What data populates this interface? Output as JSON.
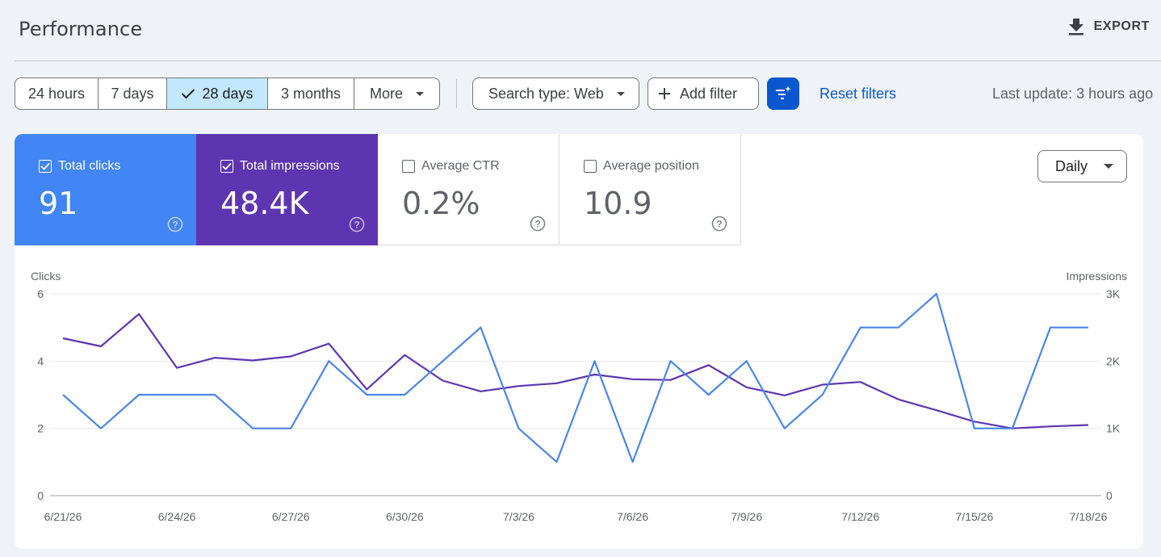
{
  "header": {
    "title": "Performance",
    "export_label": "EXPORT"
  },
  "date_range": {
    "options": [
      "24 hours",
      "7 days",
      "28 days",
      "3 months"
    ],
    "selected": "28 days",
    "more_label": "More"
  },
  "filters": {
    "search_type_label": "Search type: Web",
    "add_filter_label": "Add filter",
    "reset_label": "Reset filters",
    "last_update": "Last update: 3 hours ago"
  },
  "metrics": [
    {
      "key": "clicks",
      "label": "Total clicks",
      "value": "91",
      "checked": true,
      "color": "#4285f4"
    },
    {
      "key": "impr",
      "label": "Total impressions",
      "value": "48.4K",
      "checked": true,
      "color": "#5e35b1"
    },
    {
      "key": "ctr",
      "label": "Average CTR",
      "value": "0.2%",
      "checked": false
    },
    {
      "key": "pos",
      "label": "Average position",
      "value": "10.9",
      "checked": false
    }
  ],
  "granularity": {
    "selected": "Daily"
  },
  "chart_data": {
    "type": "line",
    "x": [
      "6/21/26",
      "6/22/26",
      "6/23/26",
      "6/24/26",
      "6/25/26",
      "6/26/26",
      "6/27/26",
      "6/28/26",
      "6/29/26",
      "6/30/26",
      "7/1/26",
      "7/2/26",
      "7/3/26",
      "7/4/26",
      "7/5/26",
      "7/6/26",
      "7/7/26",
      "7/8/26",
      "7/9/26",
      "7/10/26",
      "7/11/26",
      "7/12/26",
      "7/13/26",
      "7/14/26",
      "7/15/26",
      "7/16/26",
      "7/17/26",
      "7/18/26"
    ],
    "x_tick_labels": [
      "6/21/26",
      "6/24/26",
      "6/27/26",
      "6/30/26",
      "7/3/26",
      "7/6/26",
      "7/9/26",
      "7/12/26",
      "7/15/26",
      "7/18/26"
    ],
    "y_left": {
      "label": "Clicks",
      "ticks": [
        "0",
        "2",
        "4",
        "6"
      ],
      "lim": [
        0,
        6
      ]
    },
    "y_right": {
      "label": "Impressions",
      "ticks": [
        "0",
        "1K",
        "2K",
        "3K"
      ],
      "lim": [
        0,
        3000
      ]
    },
    "grid": true,
    "series": [
      {
        "name": "Clicks",
        "axis": "left",
        "color": "#4a86e8",
        "values": [
          3,
          2,
          3,
          3,
          3,
          2,
          2,
          4,
          3,
          3,
          4,
          5,
          2,
          1,
          4,
          1,
          4,
          3,
          4,
          2,
          3,
          5,
          5,
          6,
          2,
          2,
          5,
          5
        ]
      },
      {
        "name": "Impressions",
        "axis": "right",
        "color": "#5e35b1",
        "values": [
          2340,
          2220,
          2700,
          1900,
          2050,
          2010,
          2070,
          2260,
          1580,
          2090,
          1710,
          1550,
          1630,
          1670,
          1800,
          1730,
          1720,
          1940,
          1610,
          1490,
          1650,
          1690,
          1430,
          1270,
          1100,
          1000,
          1030,
          1050
        ]
      }
    ]
  }
}
